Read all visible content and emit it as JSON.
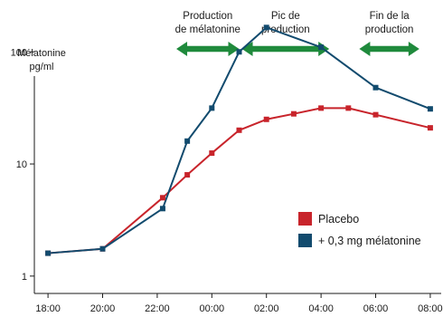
{
  "chart_data": {
    "type": "line",
    "y_scale": "log",
    "ylim": [
      0.7,
      200
    ],
    "ylabel_line1": "Mélatonine",
    "ylabel_line2": "pg/ml",
    "y_ticks": [
      {
        "value": 1,
        "label": "1"
      },
      {
        "value": 10,
        "label": "10"
      },
      {
        "value": 100,
        "label": "100"
      }
    ],
    "x_ticks": [
      {
        "hour": 18,
        "label": "18:00"
      },
      {
        "hour": 20,
        "label": "20:00"
      },
      {
        "hour": 22,
        "label": "22:00"
      },
      {
        "hour": 24,
        "label": "00:00"
      },
      {
        "hour": 26,
        "label": "02:00"
      },
      {
        "hour": 28,
        "label": "04:00"
      },
      {
        "hour": 30,
        "label": "06:00"
      },
      {
        "hour": 32,
        "label": "08:00"
      }
    ],
    "xlim": [
      17.5,
      32.4
    ],
    "series": [
      {
        "name": "Placebo",
        "color": "#c8242b",
        "x": [
          18.0,
          20.0,
          22.2,
          23.1,
          24.0,
          25.0,
          26.0,
          27.0,
          28.0,
          29.0,
          30.0,
          32.0
        ],
        "values": [
          1.6,
          1.75,
          5.0,
          8.0,
          12.5,
          20.0,
          25.0,
          28.0,
          31.5,
          31.5,
          27.5,
          21.0
        ]
      },
      {
        "name": "+ 0,3 mg mélatonine",
        "color": "#124b6e",
        "x": [
          18.0,
          20.0,
          22.2,
          23.1,
          24.0,
          25.0,
          26.0,
          28.0,
          30.0,
          32.0
        ],
        "values": [
          1.6,
          1.75,
          4.0,
          16.0,
          31.5,
          100.0,
          165.0,
          110.0,
          48.0,
          31.0
        ]
      }
    ],
    "annotations": [
      {
        "line1": "Production",
        "line2": "de mélatonine",
        "from_hour": 22.7,
        "to_hour": 25.0
      },
      {
        "line1": "Pic de",
        "line2": "production",
        "from_hour": 25.1,
        "to_hour": 28.3
      },
      {
        "line1": "Fin de la",
        "line2": "production",
        "from_hour": 29.4,
        "to_hour": 31.6
      }
    ],
    "arrow_color": "#1f8a3c",
    "legend_position": "bottom-right"
  }
}
